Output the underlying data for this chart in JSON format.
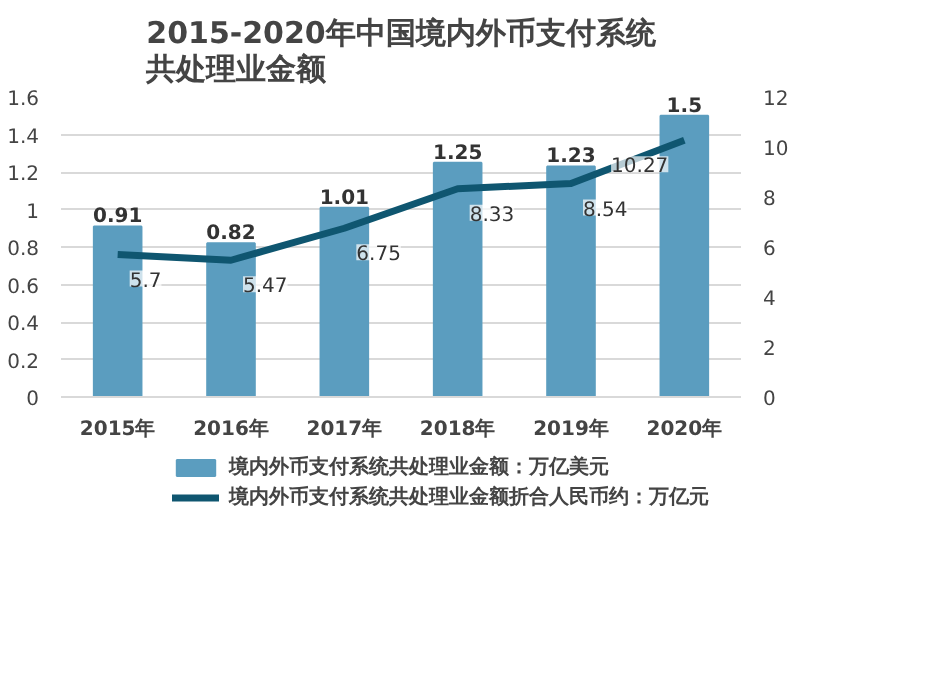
{
  "chart_data": {
    "type": "bar",
    "title": "2015-2020年中国境内外币支付系统共处理业金额",
    "categories": [
      "2015年",
      "2016年",
      "2017年",
      "2018年",
      "2019年",
      "2020年"
    ],
    "series": [
      {
        "name": "境内外币支付系统共处理业金额：万亿美元",
        "color": "#5b9dbf",
        "values": [
          0.91,
          0.82,
          1.01,
          1.25,
          1.23,
          1.5
        ]
      },
      {
        "name": "境内外币支付系统共处理业金额折合人民币约：万亿元",
        "type": "line",
        "axis": "y2",
        "color": "#0f5670",
        "values": [
          5.7,
          5.47,
          6.75,
          8.33,
          8.54,
          10.27
        ]
      }
    ],
    "ylim": [
      0,
      1.6
    ],
    "yticks": [
      0,
      0.2,
      0.4,
      0.6,
      0.8,
      1,
      1.2,
      1.4,
      1.6
    ],
    "y2lim": [
      0,
      12
    ],
    "y2ticks": [
      0,
      2,
      4,
      6,
      8,
      10,
      12
    ],
    "grid": "y",
    "legend": "bottom",
    "data_labels": true,
    "marker": "none",
    "line_style": "solid"
  }
}
